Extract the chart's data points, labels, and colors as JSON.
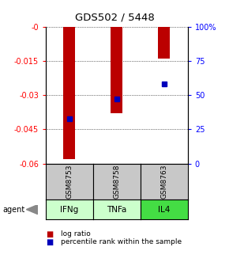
{
  "title": "GDS502 / 5448",
  "samples": [
    "GSM8753",
    "GSM8758",
    "GSM8763"
  ],
  "agents": [
    "IFNg",
    "TNFa",
    "IL4"
  ],
  "log_ratios": [
    -0.058,
    -0.038,
    -0.014
  ],
  "percentile_ranks": [
    33,
    47,
    58
  ],
  "ylim_left": [
    -0.06,
    0.0
  ],
  "ylim_right": [
    0,
    100
  ],
  "yticks_left": [
    -0.06,
    -0.045,
    -0.03,
    -0.015,
    0.0
  ],
  "yticks_right": [
    0,
    25,
    50,
    75,
    100
  ],
  "ytick_labels_left": [
    "-0.06",
    "-0.045",
    "-0.03",
    "-0.015",
    "-0"
  ],
  "ytick_labels_right": [
    "0",
    "25",
    "50",
    "75",
    "100%"
  ],
  "bar_color": "#bb0000",
  "dot_color": "#0000bb",
  "agent_colors": [
    "#ccffcc",
    "#ccffcc",
    "#44dd44"
  ],
  "sample_bg_color": "#c8c8c8",
  "bar_width": 0.25,
  "background_color": "#ffffff",
  "legend_bar_label": "log ratio",
  "legend_dot_label": "percentile rank within the sample"
}
